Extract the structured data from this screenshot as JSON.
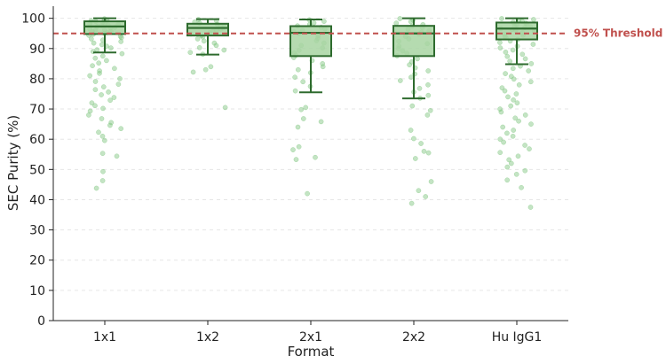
{
  "chart_data": {
    "type": "box",
    "title": "",
    "xlabel": "Format",
    "ylabel": "SEC Purity (%)",
    "ylim": [
      0,
      104
    ],
    "yticks": [
      0,
      10,
      20,
      30,
      40,
      50,
      60,
      70,
      80,
      90,
      100
    ],
    "grid": "horizontal dashed",
    "categories": [
      "1x1",
      "1x2",
      "2x1",
      "2x2",
      "Hu IgG1"
    ],
    "box_color": "#a8d5a2",
    "box_edge_color": "#2e6b2e",
    "point_color": "#7cc47c",
    "threshold": {
      "value": 95,
      "label": "95% Threshold",
      "color": "#c0504d"
    },
    "boxes": [
      {
        "name": "1x1",
        "whisker_low": 88.7,
        "q1": 94.8,
        "median": 97.3,
        "q3": 99.0,
        "whisker_high": 100
      },
      {
        "name": "1x2",
        "whisker_low": 88.0,
        "q1": 94.3,
        "median": 96.8,
        "q3": 98.2,
        "whisker_high": 99.7
      },
      {
        "name": "2x1",
        "whisker_low": 75.5,
        "q1": 87.5,
        "median": 95.2,
        "q3": 97.4,
        "whisker_high": 99.6
      },
      {
        "name": "2x2",
        "whisker_low": 73.5,
        "q1": 87.5,
        "median": 95.0,
        "q3": 97.5,
        "whisker_high": 100
      },
      {
        "name": "Hu IgG1",
        "whisker_low": 84.8,
        "q1": 93.0,
        "median": 96.6,
        "q3": 98.6,
        "whisker_high": 100
      }
    ],
    "points": [
      [
        99.8,
        99.5,
        99.2,
        99.0,
        98.7,
        98.5,
        98.2,
        98.0,
        97.8,
        97.5,
        97.3,
        97.0,
        96.8,
        96.5,
        96.2,
        96.0,
        95.7,
        95.5,
        95.2,
        95.0,
        94.7,
        94.4,
        94.0,
        93.6,
        93.2,
        92.8,
        92.3,
        91.8,
        91.3,
        90.8,
        90.2,
        89.6,
        89.0,
        88.3,
        87.5,
        86.8,
        86.0,
        85.2,
        84.3,
        83.4,
        82.6,
        81.8,
        81.0,
        80.0,
        79.1,
        78.2,
        77.3,
        76.4,
        75.6,
        74.7,
        73.8,
        72.9,
        72.0,
        71.1,
        70.2,
        69.3,
        68.0,
        66.8,
        65.5,
        64.6,
        63.5,
        62.3,
        61.0,
        59.6,
        55.3,
        54.4,
        49.3,
        46.3,
        43.8
      ],
      [
        99.6,
        99.2,
        98.8,
        98.4,
        98.0,
        97.6,
        97.2,
        96.8,
        96.4,
        96.0,
        95.6,
        95.2,
        94.8,
        94.3,
        93.8,
        93.2,
        92.5,
        91.8,
        91.0,
        90.3,
        89.5,
        88.7,
        88.1,
        84.0,
        83.0,
        82.2,
        70.5
      ],
      [
        99.5,
        99.0,
        98.5,
        98.0,
        97.5,
        97.0,
        96.5,
        96.0,
        95.5,
        95.0,
        94.2,
        93.4,
        92.6,
        91.8,
        91.0,
        90.2,
        89.4,
        88.6,
        87.8,
        87.0,
        86.0,
        85.0,
        84.0,
        83.0,
        82.0,
        80.5,
        79.0,
        77.5,
        76.0,
        70.5,
        69.8,
        66.8,
        65.8,
        64.0,
        57.5,
        56.5,
        54.0,
        53.3,
        42.0
      ],
      [
        99.9,
        99.4,
        98.9,
        98.4,
        97.9,
        97.4,
        96.9,
        96.4,
        95.9,
        95.4,
        94.8,
        94.0,
        93.2,
        92.4,
        91.6,
        90.8,
        90.0,
        89.2,
        88.4,
        87.6,
        86.6,
        85.6,
        84.6,
        83.6,
        82.6,
        81.6,
        80.5,
        79.4,
        78.0,
        76.8,
        75.6,
        74.5,
        73.6,
        71.0,
        69.5,
        68.0,
        63.0,
        60.2,
        58.6,
        56.0,
        55.5,
        53.6,
        46.0,
        43.0,
        41.0,
        38.8
      ],
      [
        99.9,
        99.6,
        99.3,
        99.0,
        98.7,
        98.4,
        98.1,
        97.8,
        97.5,
        97.2,
        96.9,
        96.6,
        96.3,
        96.0,
        95.6,
        95.2,
        94.8,
        94.4,
        94.0,
        93.5,
        93.0,
        92.5,
        92.0,
        91.4,
        90.8,
        90.2,
        89.5,
        88.8,
        88.1,
        87.4,
        86.6,
        85.8,
        85.0,
        84.2,
        83.4,
        82.6,
        81.7,
        80.8,
        79.9,
        79.0,
        78.0,
        77.0,
        76.0,
        75.0,
        74.0,
        73.0,
        72.0,
        71.0,
        70.0,
        69.0,
        68.0,
        67.0,
        66.0,
        65.0,
        64.0,
        63.0,
        62.0,
        61.0,
        60.0,
        59.0,
        58.0,
        56.8,
        55.6,
        54.4,
        53.2,
        52.0,
        50.8,
        49.6,
        48.4,
        46.5,
        44.0,
        37.5
      ]
    ]
  }
}
